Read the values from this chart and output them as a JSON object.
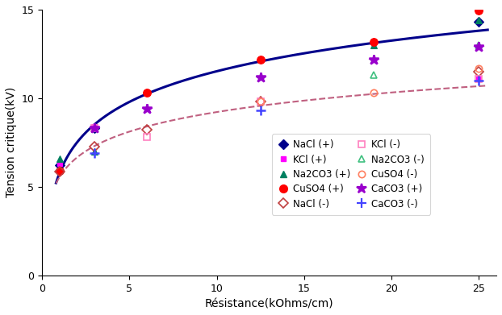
{
  "xlabel": "Résistance(kOhms/cm)",
  "ylabel": "Tension critique(kV)",
  "xlim": [
    0,
    26
  ],
  "ylim": [
    0,
    15
  ],
  "xticks": [
    0,
    5,
    10,
    15,
    20,
    25
  ],
  "yticks": [
    0,
    5,
    10,
    15
  ],
  "curve_pos_pts": [
    [
      1.0,
      6.2
    ],
    [
      3.0,
      8.3
    ],
    [
      6.0,
      9.55
    ],
    [
      12.5,
      12.2
    ],
    [
      19.0,
      13.1
    ],
    [
      25.0,
      14.2
    ]
  ],
  "curve_pos_color": "#00008B",
  "curve_neg_pts": [
    [
      1.0,
      5.85
    ],
    [
      3.0,
      7.1
    ],
    [
      6.0,
      8.05
    ],
    [
      12.5,
      9.5
    ],
    [
      19.0,
      10.3
    ],
    [
      25.0,
      10.95
    ]
  ],
  "curve_neg_color": "#C06080",
  "datasets": [
    {
      "key": "NaCl_pos",
      "x": [
        1.0,
        3.0,
        25.0
      ],
      "y": [
        6.2,
        8.3,
        14.3
      ],
      "color": "#00008B",
      "marker": "D",
      "filled": true,
      "ms": 6
    },
    {
      "key": "KCl_pos",
      "x": [
        1.0,
        3.0,
        25.0
      ],
      "y": [
        6.3,
        8.4,
        11.1
      ],
      "color": "#FF00FF",
      "marker": "s",
      "filled": true,
      "ms": 5
    },
    {
      "key": "Na2CO3_pos",
      "x": [
        1.0,
        3.0,
        19.0,
        25.0
      ],
      "y": [
        6.6,
        7.0,
        13.0,
        14.4
      ],
      "color": "#008060",
      "marker": "^",
      "filled": true,
      "ms": 6
    },
    {
      "key": "CuSO4_pos",
      "x": [
        1.0,
        6.0,
        12.5,
        19.0,
        25.0
      ],
      "y": [
        5.9,
        10.3,
        12.2,
        13.2,
        14.95
      ],
      "color": "#FF0000",
      "marker": "o",
      "filled": true,
      "ms": 7
    },
    {
      "key": "NaCl_neg",
      "x": [
        1.0,
        3.0,
        6.0,
        12.5,
        25.0
      ],
      "y": [
        5.85,
        7.25,
        8.2,
        9.8,
        11.5
      ],
      "color": "#C04040",
      "marker": "D",
      "filled": false,
      "ms": 6
    },
    {
      "key": "KCl_neg",
      "x": [
        3.0,
        6.0,
        12.5,
        25.0
      ],
      "y": [
        8.3,
        7.8,
        9.8,
        11.1
      ],
      "color": "#FF80C0",
      "marker": "s",
      "filled": false,
      "ms": 6
    },
    {
      "key": "Na2CO3_neg",
      "x": [
        19.0,
        25.0
      ],
      "y": [
        11.3,
        13.0
      ],
      "color": "#40C080",
      "marker": "^",
      "filled": false,
      "ms": 6
    },
    {
      "key": "CuSO4_neg",
      "x": [
        12.5,
        19.0,
        25.0
      ],
      "y": [
        9.8,
        10.3,
        11.7
      ],
      "color": "#FF8060",
      "marker": "o",
      "filled": false,
      "ms": 6
    },
    {
      "key": "CaCO3_pos",
      "x": [
        3.0,
        6.0,
        12.5,
        19.0,
        25.0
      ],
      "y": [
        8.3,
        9.4,
        11.2,
        12.2,
        12.9
      ],
      "color": "#9900CC",
      "marker": "*",
      "filled": true,
      "ms": 9
    },
    {
      "key": "CaCO3_neg",
      "x": [
        3.0,
        12.5,
        25.0
      ],
      "y": [
        6.9,
        9.3,
        11.0
      ],
      "color": "#4444FF",
      "marker": "+",
      "filled": true,
      "ms": 8
    }
  ],
  "legend_entries": [
    {
      "label": "NaCl (+)",
      "color": "#00008B",
      "marker": "D",
      "filled": true,
      "ms": 6
    },
    {
      "label": "KCl (+)",
      "color": "#FF00FF",
      "marker": "s",
      "filled": true,
      "ms": 5
    },
    {
      "label": "Na2CO3 (+)",
      "color": "#008060",
      "marker": "^",
      "filled": true,
      "ms": 6
    },
    {
      "label": "CuSO4 (+)",
      "color": "#FF0000",
      "marker": "o",
      "filled": true,
      "ms": 7
    },
    {
      "label": "NaCl (-)",
      "color": "#C04040",
      "marker": "D",
      "filled": false,
      "ms": 6
    },
    {
      "label": "KCl (-)",
      "color": "#FF80C0",
      "marker": "s",
      "filled": false,
      "ms": 6
    },
    {
      "label": "Na2CO3 (-)",
      "color": "#40C080",
      "marker": "^",
      "filled": false,
      "ms": 6
    },
    {
      "label": "CuSO4 (-)",
      "color": "#FF8060",
      "marker": "o",
      "filled": false,
      "ms": 6
    },
    {
      "label": "CaCO3 (+)",
      "color": "#9900CC",
      "marker": "*",
      "filled": true,
      "ms": 9
    },
    {
      "label": "CaCO3 (-)",
      "color": "#4444FF",
      "marker": "+",
      "filled": true,
      "ms": 8
    }
  ]
}
